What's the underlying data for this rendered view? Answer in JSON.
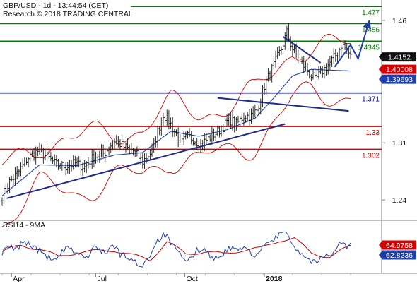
{
  "header": {
    "line1": "GBP/USD - 1d - 13:44:54 (CET)",
    "line2": "Research © 2018 TRADING CENTRAL"
  },
  "colors": {
    "price": "#1a1a1a",
    "bollinger": "#d40000",
    "ma": "#1f3fa8",
    "trend": "#1f2a8a",
    "support": "#cc0000",
    "resistance": "#008000",
    "pivot": "#0000aa",
    "projection": "#1f3fa8",
    "rsi": "#1f3fa8",
    "rsi_ma": "#cc0000",
    "badge_dark": "#111111",
    "badge_blue": "#1f3fa8",
    "badge_red": "#d40000"
  },
  "chart_data": [
    {
      "type": "line",
      "panel": "price",
      "ylim": [
        1.215,
        1.485
      ],
      "yticks": [
        {
          "value": 1.46,
          "label": "1.46"
        },
        {
          "value": 1.39,
          "label": "1.39"
        },
        {
          "value": 1.31,
          "label": "1.31"
        },
        {
          "value": 1.24,
          "label": "1.24"
        }
      ],
      "xticks": [
        {
          "day": 10,
          "label": "Apr"
        },
        {
          "day": 100,
          "label": "Jul"
        },
        {
          "day": 195,
          "label": "Oct"
        },
        {
          "day": 280,
          "label": "2018",
          "bold": true
        }
      ],
      "total_days": 375,
      "close_anchors": [
        [
          0,
          1.245
        ],
        [
          8,
          1.262
        ],
        [
          18,
          1.275
        ],
        [
          28,
          1.292
        ],
        [
          38,
          1.3
        ],
        [
          48,
          1.293
        ],
        [
          58,
          1.283
        ],
        [
          68,
          1.281
        ],
        [
          78,
          1.285
        ],
        [
          88,
          1.28
        ],
        [
          98,
          1.293
        ],
        [
          110,
          1.298
        ],
        [
          120,
          1.314
        ],
        [
          130,
          1.305
        ],
        [
          140,
          1.3
        ],
        [
          150,
          1.287
        ],
        [
          160,
          1.3
        ],
        [
          165,
          1.32
        ],
        [
          172,
          1.345
        ],
        [
          178,
          1.337
        ],
        [
          185,
          1.322
        ],
        [
          192,
          1.31
        ],
        [
          198,
          1.318
        ],
        [
          205,
          1.314
        ],
        [
          212,
          1.308
        ],
        [
          220,
          1.315
        ],
        [
          228,
          1.322
        ],
        [
          235,
          1.328
        ],
        [
          242,
          1.339
        ],
        [
          250,
          1.333
        ],
        [
          258,
          1.343
        ],
        [
          266,
          1.343
        ],
        [
          272,
          1.35
        ],
        [
          280,
          1.38
        ],
        [
          290,
          1.405
        ],
        [
          298,
          1.425
        ],
        [
          304,
          1.445
        ],
        [
          310,
          1.425
        ],
        [
          318,
          1.411
        ],
        [
          326,
          1.398
        ],
        [
          334,
          1.387
        ],
        [
          342,
          1.398
        ],
        [
          350,
          1.408
        ],
        [
          358,
          1.42
        ],
        [
          362,
          1.43
        ],
        [
          368,
          1.425
        ],
        [
          372,
          1.415
        ]
      ],
      "moving_average": [
        [
          0,
          1.245
        ],
        [
          40,
          1.283
        ],
        [
          80,
          1.282
        ],
        [
          120,
          1.295
        ],
        [
          150,
          1.298
        ],
        [
          180,
          1.324
        ],
        [
          210,
          1.318
        ],
        [
          240,
          1.326
        ],
        [
          270,
          1.34
        ],
        [
          290,
          1.365
        ],
        [
          310,
          1.392
        ],
        [
          330,
          1.4
        ],
        [
          350,
          1.399
        ],
        [
          372,
          1.398
        ]
      ],
      "horizontal_levels": [
        {
          "value": 1.477,
          "label": "1.477",
          "kind": "resistance"
        },
        {
          "value": 1.456,
          "label": "1.456",
          "kind": "resistance"
        },
        {
          "value": 1.4345,
          "label": "1.4345",
          "kind": "resistance"
        },
        {
          "value": 1.371,
          "label": "1.371",
          "kind": "pivot"
        },
        {
          "value": 1.33,
          "label": "1.33",
          "kind": "support"
        },
        {
          "value": 1.302,
          "label": "1.302",
          "kind": "support"
        }
      ],
      "trendlines": [
        {
          "from": [
            5,
            1.242
          ],
          "to": [
            302,
            1.333
          ]
        },
        {
          "from": [
            230,
            1.365
          ],
          "to": [
            370,
            1.349
          ]
        },
        {
          "from": [
            300,
            1.44
          ],
          "to": [
            340,
            1.408
          ]
        }
      ],
      "projection": [
        [
          355,
          1.403
        ],
        [
          372,
          1.43
        ],
        [
          380,
          1.413
        ],
        [
          392,
          1.46
        ]
      ],
      "badges": [
        {
          "value": 1.4152,
          "label": "1.4152",
          "style": "dark"
        },
        {
          "value": 1.40008,
          "label": "1.40008",
          "style": "red"
        },
        {
          "value": 1.39693,
          "label": "1.39693",
          "style": "blue"
        }
      ]
    },
    {
      "type": "line",
      "panel": "rsi",
      "title": "RSI14 - 9MA",
      "ylim": [
        25,
        100
      ],
      "yticks": [
        {
          "value": 50,
          "label": "50"
        }
      ],
      "rsi_anchors": [
        [
          0,
          55
        ],
        [
          8,
          62
        ],
        [
          15,
          58
        ],
        [
          22,
          70
        ],
        [
          30,
          66
        ],
        [
          38,
          58
        ],
        [
          45,
          52
        ],
        [
          52,
          45
        ],
        [
          58,
          42
        ],
        [
          64,
          55
        ],
        [
          70,
          60
        ],
        [
          78,
          56
        ],
        [
          85,
          50
        ],
        [
          92,
          47
        ],
        [
          98,
          62
        ],
        [
          105,
          58
        ],
        [
          112,
          55
        ],
        [
          118,
          65
        ],
        [
          126,
          52
        ],
        [
          134,
          48
        ],
        [
          142,
          40
        ],
        [
          150,
          36
        ],
        [
          158,
          52
        ],
        [
          166,
          72
        ],
        [
          174,
          80
        ],
        [
          182,
          64
        ],
        [
          190,
          50
        ],
        [
          198,
          40
        ],
        [
          206,
          55
        ],
        [
          214,
          62
        ],
        [
          222,
          50
        ],
        [
          230,
          45
        ],
        [
          238,
          56
        ],
        [
          246,
          61
        ],
        [
          254,
          58
        ],
        [
          262,
          60
        ],
        [
          270,
          50
        ],
        [
          278,
          60
        ],
        [
          286,
          70
        ],
        [
          294,
          76
        ],
        [
          300,
          86
        ],
        [
          306,
          80
        ],
        [
          312,
          62
        ],
        [
          318,
          55
        ],
        [
          326,
          46
        ],
        [
          334,
          40
        ],
        [
          342,
          47
        ],
        [
          350,
          52
        ],
        [
          356,
          60
        ],
        [
          362,
          70
        ],
        [
          368,
          62
        ],
        [
          372,
          65
        ]
      ],
      "rsi_ma_anchors": [
        [
          0,
          56
        ],
        [
          20,
          64
        ],
        [
          40,
          60
        ],
        [
          60,
          48
        ],
        [
          80,
          55
        ],
        [
          100,
          56
        ],
        [
          120,
          58
        ],
        [
          140,
          50
        ],
        [
          158,
          44
        ],
        [
          176,
          70
        ],
        [
          196,
          52
        ],
        [
          216,
          56
        ],
        [
          236,
          52
        ],
        [
          256,
          58
        ],
        [
          276,
          60
        ],
        [
          296,
          72
        ],
        [
          312,
          74
        ],
        [
          330,
          54
        ],
        [
          350,
          48
        ],
        [
          372,
          64
        ]
      ],
      "badges": [
        {
          "value": 64.9758,
          "label": "64.9758",
          "style": "red"
        },
        {
          "value": 62.8236,
          "label": "62.8236",
          "style": "blue"
        }
      ]
    }
  ]
}
